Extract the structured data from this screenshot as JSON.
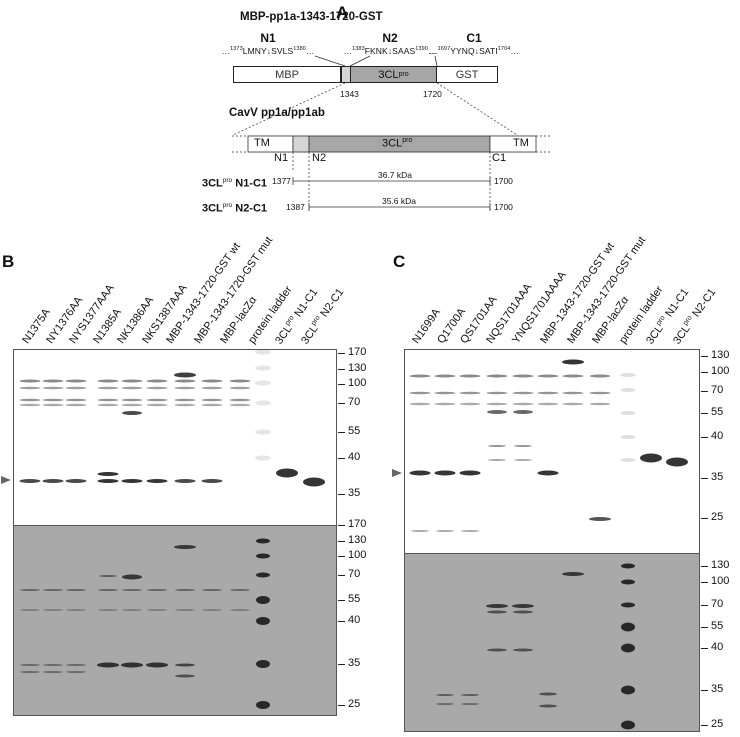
{
  "panels": {
    "A": "A",
    "B": "B",
    "C": "C"
  },
  "diagram": {
    "construct_title": "MBP-pp1a-1343-1720-GST",
    "sites": [
      {
        "name": "N1",
        "start": "1373",
        "seq": "LMNY↓SVLS",
        "end": "1380"
      },
      {
        "name": "N2",
        "start": "1383",
        "seq": "FKNK↓SAAS",
        "end": "1390"
      },
      {
        "name": "C1",
        "start": "1697",
        "seq": "YYNQ↓SATI",
        "end": "1704"
      }
    ],
    "fusion_boxes": {
      "mbp": "MBP",
      "protease": "3CL",
      "protease_sup": "pro",
      "gst": "GST"
    },
    "fusion_numbers": {
      "left": "1343",
      "right": "1720"
    },
    "polyprotein_title": "CavV pp1a/pp1ab",
    "polyprotein": {
      "tm_left": "TM",
      "protease": "3CL",
      "protease_sup": "pro",
      "tm_right": "TM",
      "n1": "N1",
      "n2": "N2",
      "c1": "C1"
    },
    "fragments": [
      {
        "prefix": "3CL",
        "sup": "pro",
        "suffix": " N1-C1",
        "start": "1377",
        "mass": "36.7 kDa",
        "end": "1700"
      },
      {
        "prefix": "3CL",
        "sup": "pro",
        "suffix": " N2-C1",
        "start": "1387",
        "mass": "35.6 kDa",
        "end": "1700"
      }
    ]
  },
  "gel_B": {
    "lanes": [
      {
        "text": "N1375A"
      },
      {
        "text": "NY1376AA"
      },
      {
        "text": "NYS1377AAA"
      },
      {
        "text": "N1385A"
      },
      {
        "text": "NK1386AA"
      },
      {
        "text": "NKS1387AAA"
      },
      {
        "text": "MBP-1343-1720-GST wt"
      },
      {
        "text": "MBP-1343-1720-GST mut"
      },
      {
        "text": "MBP-lacZα"
      },
      {
        "text": "protein ladder"
      },
      {
        "text": "3CL",
        "sup": "pro",
        "tail": " N1-C1"
      },
      {
        "text": "3CL",
        "sup": "pro",
        "tail": " N2-C1"
      }
    ],
    "mw_top": [
      "170",
      "130",
      "100",
      "70",
      "55",
      "40",
      "35"
    ],
    "mw_bottom": [
      "170",
      "130",
      "100",
      "70",
      "55",
      "40",
      "35",
      "25"
    ]
  },
  "gel_C": {
    "lanes": [
      {
        "text": "N1699A"
      },
      {
        "text": "Q1700A"
      },
      {
        "text": "QS1701AA"
      },
      {
        "text": "NQS1701AAA"
      },
      {
        "text": "YNQS1701AAAA"
      },
      {
        "text": "MBP-1343-1720-GST wt"
      },
      {
        "text": "MBP-1343-1720-GST mut"
      },
      {
        "text": "MBP-lacZα"
      },
      {
        "text": "protein ladder"
      },
      {
        "text": "3CL",
        "sup": "pro",
        "tail": " N1-C1"
      },
      {
        "text": "3CL",
        "sup": "pro",
        "tail": " N2-C1"
      }
    ],
    "mw_top": [
      "130",
      "100",
      "70",
      "55",
      "40",
      "35",
      "25"
    ],
    "mw_bottom": [
      "130",
      "100",
      "70",
      "55",
      "40",
      "35",
      "25"
    ]
  },
  "colors": {
    "protease_box": "#a6a6a6",
    "light_segment": "#d4d4d4",
    "gel_bottom_bg": "#a9a9a9",
    "gel_top_bg": "#ffffff",
    "band": "#2a2a2a"
  }
}
